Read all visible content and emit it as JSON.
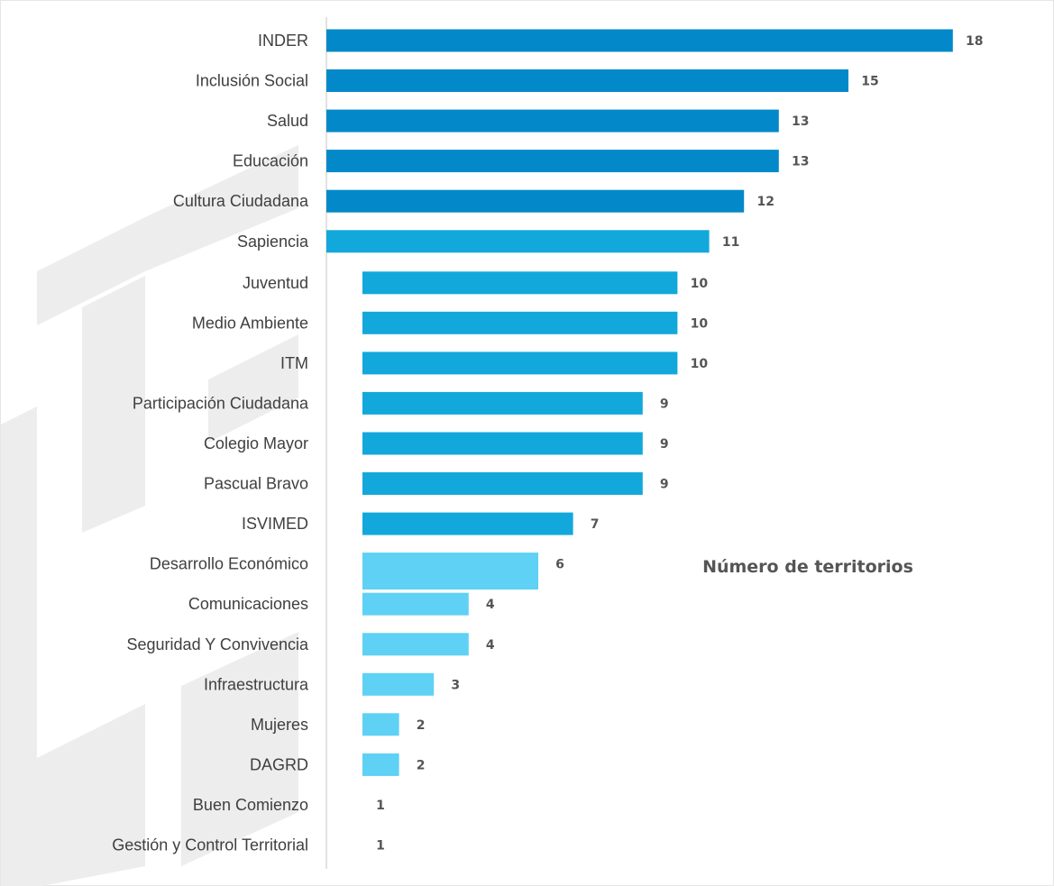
{
  "chart_data": {
    "type": "bar",
    "orientation": "horizontal",
    "title": "Número de territorios",
    "xlabel": "",
    "ylabel": "",
    "xlim": [
      0,
      18
    ],
    "grid": false,
    "legend": "none",
    "categories": [
      "INDER",
      "Inclusión Social",
      "Salud",
      "Educación",
      "Cultura Ciudadana",
      "Sapiencia",
      "Juventud",
      "Medio Ambiente",
      "ITM",
      "Participación Ciudadana",
      "Colegio Mayor",
      "Pascual Bravo",
      "ISVIMED",
      "Desarrollo Económico",
      "Comunicaciones",
      "Seguridad Y Convivencia",
      "Infraestructura",
      "Mujeres",
      "DAGRD",
      "Buen Comienzo",
      "Gestión y Control Territorial"
    ],
    "values": [
      18,
      15,
      13,
      13,
      12,
      11,
      10,
      10,
      10,
      9,
      9,
      9,
      7,
      6,
      4,
      4,
      3,
      2,
      2,
      1,
      1
    ],
    "value_labels": [
      "18",
      "15",
      "13",
      "13",
      "12",
      "11",
      "10",
      "10",
      "10",
      "9",
      "9",
      "9",
      "7",
      "6",
      "4",
      "4",
      "3",
      "2",
      "2",
      "1",
      "1"
    ],
    "colors": {
      "dark_blue": "#0389C9",
      "mid_blue": "#12A8DB",
      "light_blue": "#5ED1F5",
      "watermark": "#ededed",
      "axis": "#d9d9d9",
      "label_text": "#3f3f3f",
      "value_text": "#555555"
    },
    "bar_color_groups": [
      "dark_blue",
      "dark_blue",
      "dark_blue",
      "dark_blue",
      "dark_blue",
      "mid_blue",
      "mid_blue",
      "mid_blue",
      "mid_blue",
      "mid_blue",
      "mid_blue",
      "mid_blue",
      "mid_blue",
      "light_blue",
      "light_blue",
      "light_blue",
      "light_blue",
      "light_blue",
      "light_blue",
      "light_blue",
      "light_blue"
    ]
  }
}
